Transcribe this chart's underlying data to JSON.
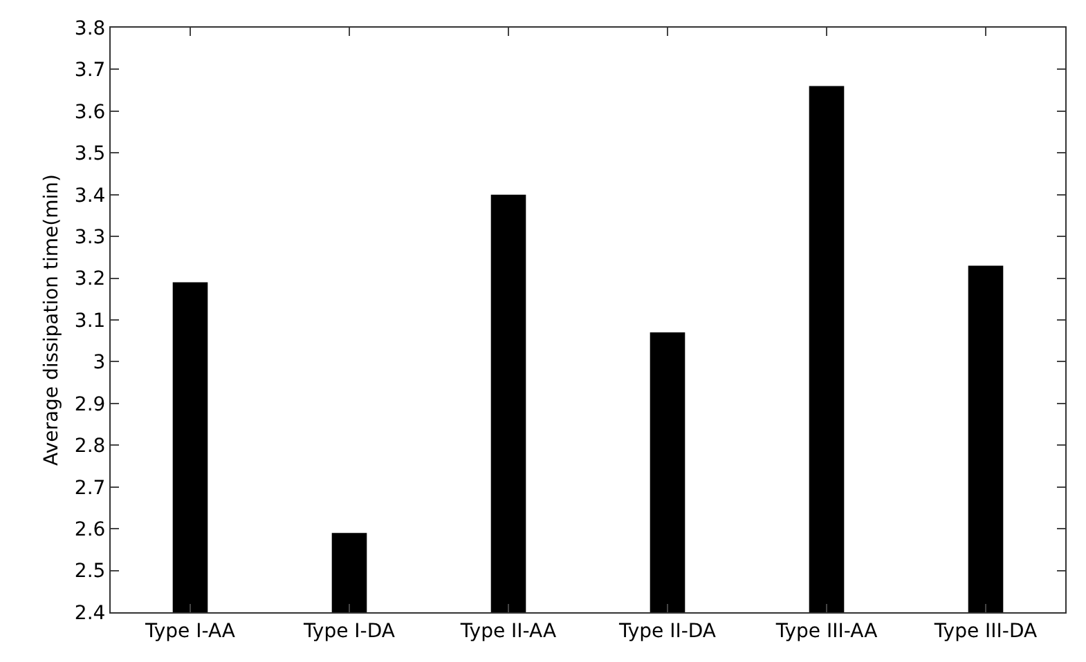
{
  "chart_data": {
    "type": "bar",
    "ylabel": "Average dissipation time(min)",
    "categories": [
      "Type I-AA",
      "Type I-DA",
      "Type II-AA",
      "Type II-DA",
      "Type III-AA",
      "Type III-DA"
    ],
    "values": [
      3.19,
      2.59,
      3.4,
      3.07,
      3.66,
      3.23
    ],
    "color": "#000000",
    "ylim": [
      2.4,
      3.8
    ],
    "yticks": [
      2.4,
      2.5,
      2.6,
      2.7,
      2.8,
      2.9,
      3,
      3.1,
      3.2,
      3.3,
      3.4,
      3.5,
      3.6,
      3.7,
      3.8
    ]
  }
}
